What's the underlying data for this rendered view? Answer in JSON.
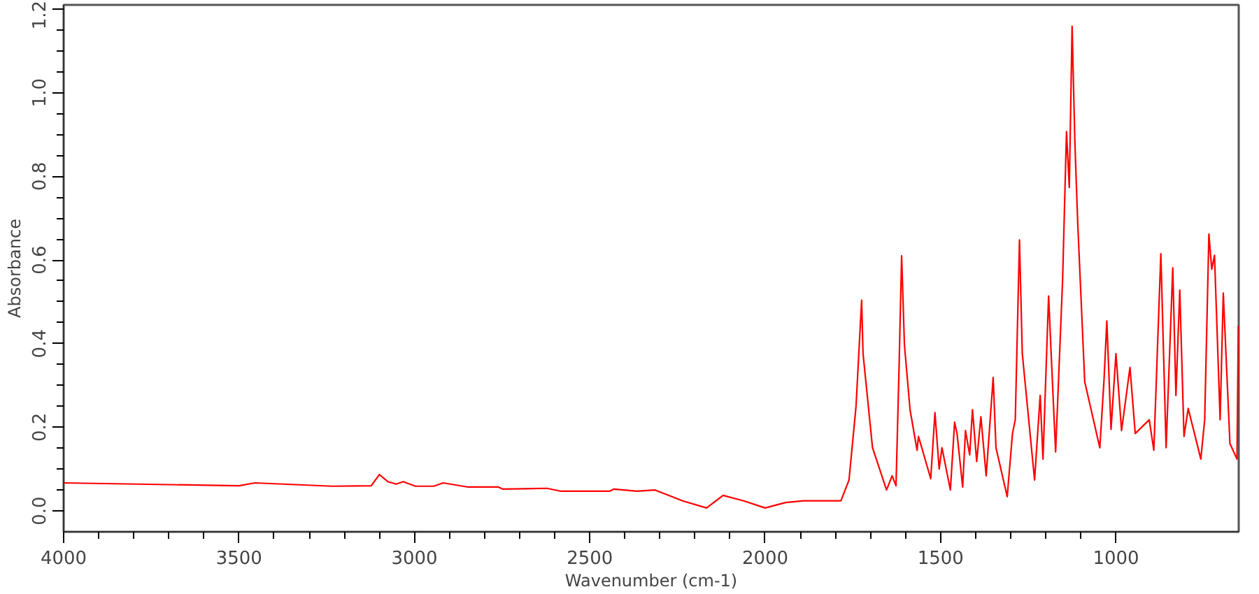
{
  "chart_data": {
    "type": "line",
    "xlabel": "Wavenumber (cm-1)",
    "ylabel": "Absorbance",
    "xlim": [
      4000,
      650
    ],
    "ylim": [
      -0.05,
      1.21
    ],
    "xticks": [
      4000,
      3500,
      3000,
      2500,
      2000,
      1500,
      1000
    ],
    "yticks": [
      {
        "value": 0,
        "label": "0.0"
      },
      {
        "value": 0.2,
        "label": "0.2"
      },
      {
        "value": 0.4,
        "label": "0.4"
      },
      {
        "value": 0.6,
        "label": "0.6"
      },
      {
        "value": 0.8,
        "label": "0.8"
      },
      {
        "value": 1.0,
        "label": "1.0"
      },
      {
        "value": 1.2,
        "label": "1.2"
      }
    ],
    "grid": false,
    "marker": "none",
    "line_style": "solid",
    "series": [
      {
        "color": "#ff0000",
        "x": [
          4000,
          3500,
          3455,
          3234,
          3123,
          3100,
          3076,
          3052,
          3032,
          2997,
          2945,
          2918,
          2847,
          2760,
          2748,
          2622,
          2582,
          2444,
          2432,
          2365,
          2314,
          2235,
          2167,
          2120,
          2061,
          2000,
          1942,
          1891,
          1784,
          1761,
          1741,
          1725,
          1721,
          1694,
          1654,
          1638,
          1627,
          1618,
          1611,
          1603,
          1587,
          1567,
          1563,
          1528,
          1516,
          1504,
          1496,
          1472,
          1460,
          1453,
          1437,
          1429,
          1417,
          1409,
          1397,
          1385,
          1370,
          1350,
          1342,
          1310,
          1295,
          1287,
          1275,
          1267,
          1232,
          1216,
          1208,
          1192,
          1184,
          1172,
          1152,
          1141,
          1133,
          1125,
          1117,
          1109,
          1089,
          1046,
          1034,
          1026,
          1014,
          1000,
          984,
          960,
          945,
          905,
          892,
          872,
          857,
          838,
          829,
          818,
          806,
          794,
          758,
          747,
          735,
          727,
          719,
          703,
          694,
          675,
          655,
          651
        ],
        "values": [
          0.067,
          0.06,
          0.067,
          0.059,
          0.06,
          0.087,
          0.07,
          0.064,
          0.07,
          0.059,
          0.059,
          0.067,
          0.057,
          0.057,
          0.052,
          0.054,
          0.047,
          0.047,
          0.052,
          0.047,
          0.05,
          0.024,
          0.007,
          0.037,
          0.024,
          0.007,
          0.02,
          0.024,
          0.024,
          0.074,
          0.25,
          0.504,
          0.376,
          0.151,
          0.05,
          0.084,
          0.06,
          0.353,
          0.61,
          0.397,
          0.242,
          0.145,
          0.178,
          0.077,
          0.235,
          0.1,
          0.151,
          0.05,
          0.212,
          0.185,
          0.057,
          0.192,
          0.134,
          0.242,
          0.118,
          0.225,
          0.084,
          0.319,
          0.151,
          0.034,
          0.185,
          0.218,
          0.648,
          0.376,
          0.074,
          0.276,
          0.124,
          0.514,
          0.363,
          0.141,
          0.554,
          0.907,
          0.773,
          1.159,
          0.88,
          0.689,
          0.309,
          0.151,
          0.313,
          0.454,
          0.195,
          0.376,
          0.192,
          0.343,
          0.185,
          0.218,
          0.145,
          0.615,
          0.151,
          0.581,
          0.276,
          0.528,
          0.178,
          0.245,
          0.124,
          0.218,
          0.662,
          0.578,
          0.611,
          0.218,
          0.521,
          0.161,
          0.124,
          0.443
        ]
      }
    ]
  }
}
